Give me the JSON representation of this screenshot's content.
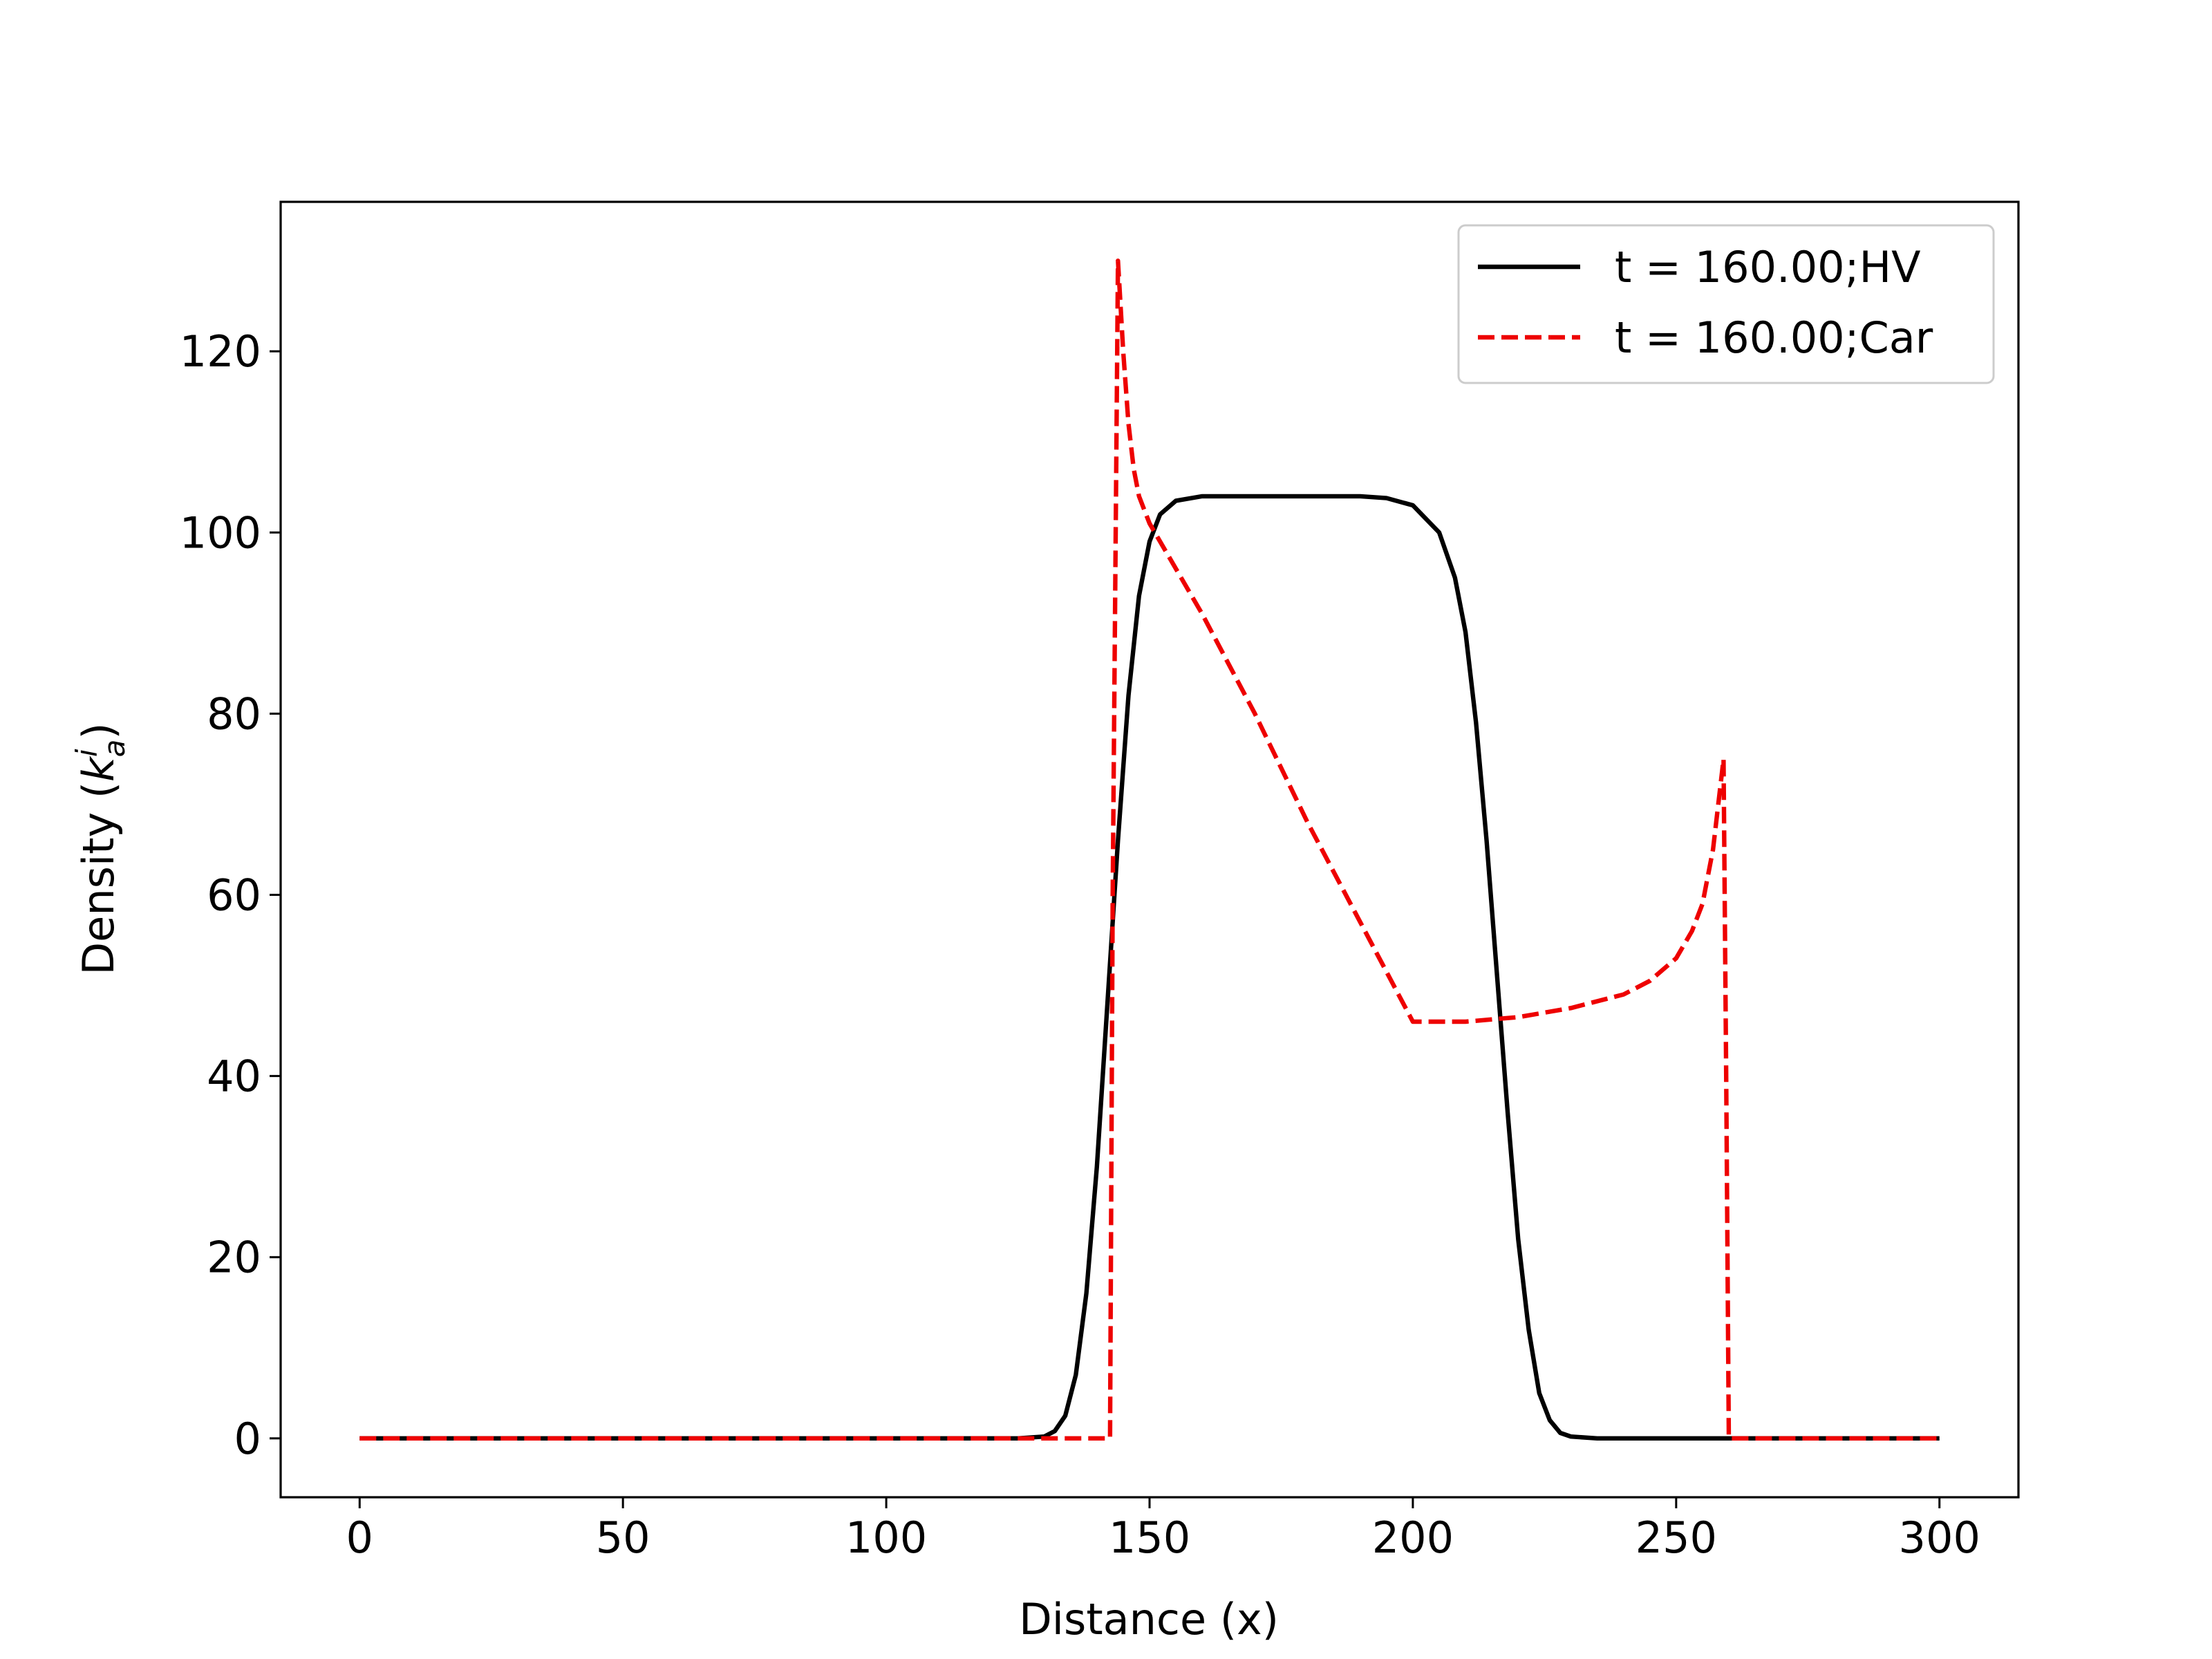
{
  "chart_data": {
    "type": "line",
    "xlabel": "Distance (x)",
    "ylabel": {
      "text": "Density (",
      "symbol": "k",
      "sup": "i",
      "sub": "a",
      "close": ")"
    },
    "xlim": [
      -15,
      315
    ],
    "xticks": [
      0,
      50,
      100,
      150,
      200,
      250,
      300
    ],
    "ylim": [
      -6.5,
      136.5
    ],
    "yticks": [
      0,
      20,
      40,
      60,
      80,
      100,
      120
    ],
    "legend": "upper right",
    "series": [
      {
        "name": "t = 160.00;HV",
        "color": "#000000",
        "dash": false,
        "x": [
          0,
          125,
          130,
          132,
          134,
          136,
          138,
          140,
          142,
          144,
          146,
          148,
          150,
          152,
          155,
          160,
          190,
          195,
          200,
          205,
          208,
          210,
          212,
          214,
          216,
          218,
          220,
          222,
          224,
          226,
          228,
          230,
          235,
          300
        ],
        "values": [
          0,
          0,
          0.2,
          0.8,
          2.5,
          7,
          16,
          30,
          48,
          66,
          82,
          93,
          99,
          102,
          103.5,
          104,
          104,
          103.8,
          103,
          100,
          95,
          89,
          79,
          66,
          51,
          36,
          22,
          12,
          5,
          2,
          0.6,
          0.2,
          0,
          0
        ]
      },
      {
        "name": "t = 160.00;Car",
        "color": "#ee0000",
        "dash": true,
        "x": [
          0,
          142.5,
          143,
          144,
          145,
          146,
          147,
          148,
          150,
          155,
          160,
          170,
          180,
          190,
          200,
          205,
          210,
          220,
          230,
          240,
          245,
          250,
          253,
          255,
          257,
          258,
          259,
          259.5,
          260,
          300
        ],
        "values": [
          0,
          0,
          60,
          130,
          120,
          112,
          107,
          104,
          101,
          96,
          91,
          80,
          68,
          57,
          46,
          46,
          46,
          46.5,
          47.5,
          49,
          50.5,
          53,
          56,
          59,
          65,
          70,
          75,
          40,
          0,
          0
        ]
      }
    ]
  }
}
